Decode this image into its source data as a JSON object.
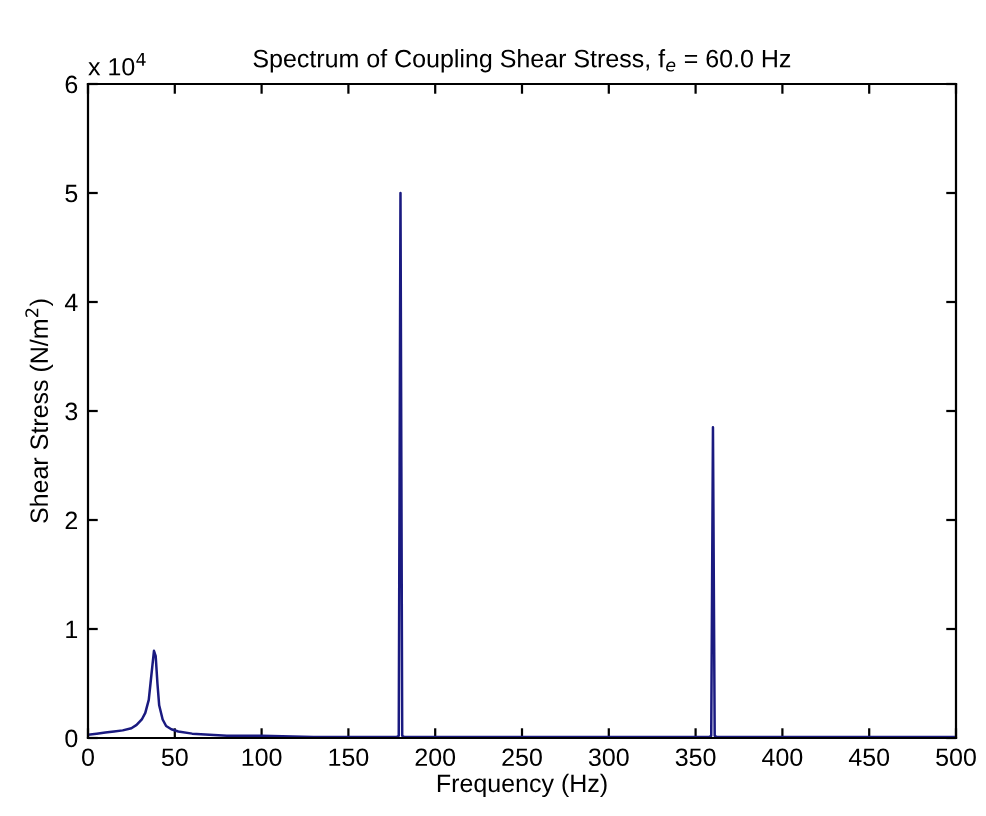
{
  "chart_data": {
    "type": "line",
    "title": "Spectrum of Coupling Shear Stress, f$_{e}$ = 60.0 Hz",
    "xlabel": "Frequency (Hz)",
    "ylabel": "Shear Stress (N/m$^{2}$)",
    "annotations": [
      "x 10$^{4}$"
    ],
    "series": [
      {
        "color": "#1a1a80",
        "x": [
          0,
          5,
          10,
          15,
          20,
          25,
          28,
          31,
          33,
          35,
          36,
          37,
          38,
          39,
          40,
          41,
          43,
          45,
          48,
          52,
          60,
          70,
          80,
          100,
          130,
          170,
          178,
          179,
          179.5,
          180,
          180.5,
          181,
          182,
          190,
          250,
          330,
          355,
          358,
          359,
          359.5,
          360,
          360.5,
          361,
          362,
          400,
          450,
          500
        ],
        "values": [
          0.03,
          0.04,
          0.05,
          0.06,
          0.07,
          0.09,
          0.12,
          0.17,
          0.23,
          0.35,
          0.5,
          0.65,
          0.8,
          0.75,
          0.5,
          0.3,
          0.17,
          0.11,
          0.08,
          0.06,
          0.04,
          0.03,
          0.02,
          0.02,
          0.01,
          0.01,
          0.01,
          0.02,
          2.5,
          5.0,
          2.5,
          0.02,
          0.01,
          0.01,
          0.01,
          0.01,
          0.01,
          0.01,
          0.02,
          1.4,
          2.85,
          1.4,
          0.02,
          0.01,
          0.01,
          0.01,
          0.01
        ]
      }
    ],
    "xlim": [
      0,
      500
    ],
    "xticks": [
      0,
      50,
      100,
      150,
      200,
      250,
      300,
      350,
      400,
      450,
      500
    ],
    "ylim": [
      0,
      6
    ],
    "yticks": [
      0,
      1,
      2,
      3,
      4,
      5,
      6
    ],
    "grid": false,
    "legend": false
  }
}
